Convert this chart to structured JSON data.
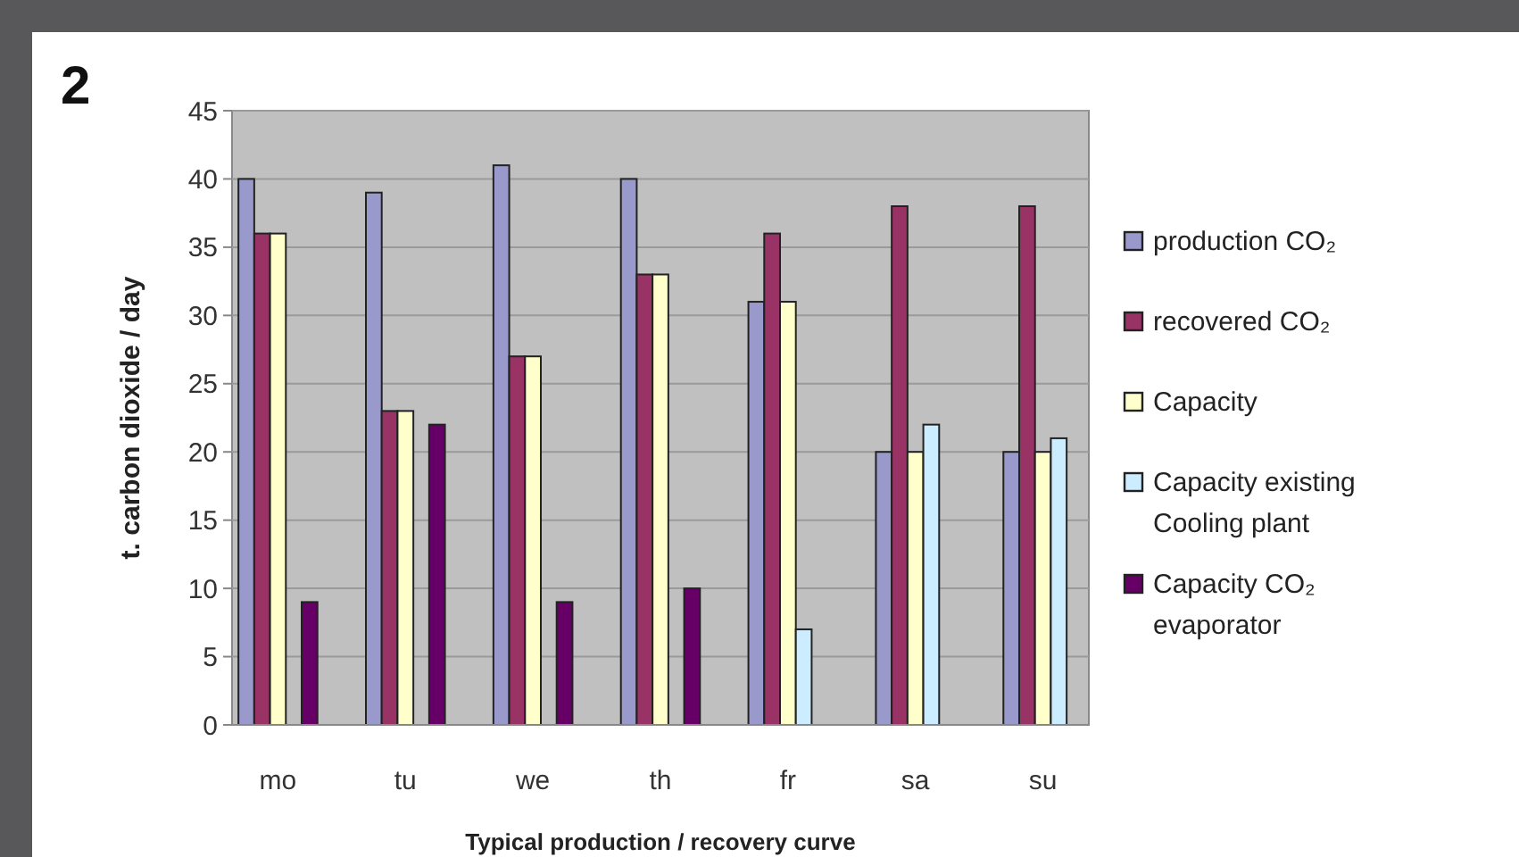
{
  "chart_data": {
    "type": "bar",
    "annotations": [
      "2"
    ],
    "xlabel": "Typical production / recovery curve",
    "ylabel": "t. carbon dioxide / day",
    "categories": [
      "mo",
      "tu",
      "we",
      "th",
      "fr",
      "sa",
      "su"
    ],
    "series": [
      {
        "name": "production CO₂",
        "color": "#9999cc",
        "values": [
          40,
          39,
          41,
          40,
          31,
          20,
          20
        ]
      },
      {
        "name": "recovered CO₂",
        "color": "#993366",
        "values": [
          36,
          23,
          27,
          33,
          36,
          38,
          38
        ]
      },
      {
        "name": "Capacity",
        "color": "#ffffcc",
        "values": [
          36,
          23,
          27,
          33,
          31,
          20,
          20
        ]
      },
      {
        "name": "Capacity existing Cooling plant",
        "color": "#ccecff",
        "values": [
          null,
          null,
          null,
          null,
          7,
          22,
          21
        ]
      },
      {
        "name": "Capacity CO₂ evaporator",
        "color": "#660066",
        "values": [
          9,
          22,
          9,
          10,
          null,
          null,
          null
        ]
      }
    ],
    "ylim": [
      0,
      45
    ],
    "yticks": [
      0,
      5,
      10,
      15,
      20,
      25,
      30,
      35,
      40,
      45
    ],
    "grid": "y",
    "legend": "right"
  }
}
